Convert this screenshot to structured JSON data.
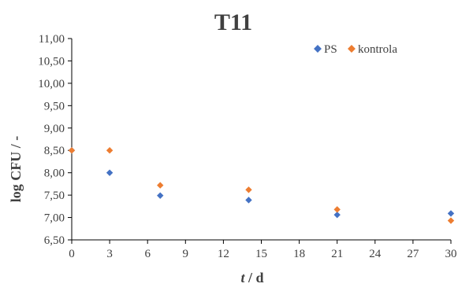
{
  "chart_data": {
    "type": "scatter",
    "title": "T11",
    "xlabel_italic": "t",
    "xlabel_rest": " / d",
    "ylabel": "log CFU / -",
    "xlim": [
      0,
      30
    ],
    "ylim": [
      6.5,
      11.0
    ],
    "x_ticks": [
      "0",
      "3",
      "6",
      "9",
      "12",
      "15",
      "18",
      "21",
      "24",
      "27",
      "30"
    ],
    "y_ticks": [
      "6,50",
      "7,00",
      "7,50",
      "8,00",
      "8,50",
      "9,00",
      "9,50",
      "10,00",
      "10,50",
      "11,00"
    ],
    "grid": false,
    "legend_position": "top-right",
    "series": [
      {
        "name": "PS",
        "color": "#4472C4",
        "points": [
          [
            0,
            8.5
          ],
          [
            3,
            8.0
          ],
          [
            7,
            7.49
          ],
          [
            14,
            7.39
          ],
          [
            21,
            7.06
          ],
          [
            30,
            7.09
          ]
        ]
      },
      {
        "name": "kontrola",
        "color": "#ED7D31",
        "points": [
          [
            0,
            8.5
          ],
          [
            3,
            8.5
          ],
          [
            7,
            7.72
          ],
          [
            14,
            7.62
          ],
          [
            21,
            7.18
          ],
          [
            30,
            6.93
          ]
        ]
      }
    ]
  }
}
